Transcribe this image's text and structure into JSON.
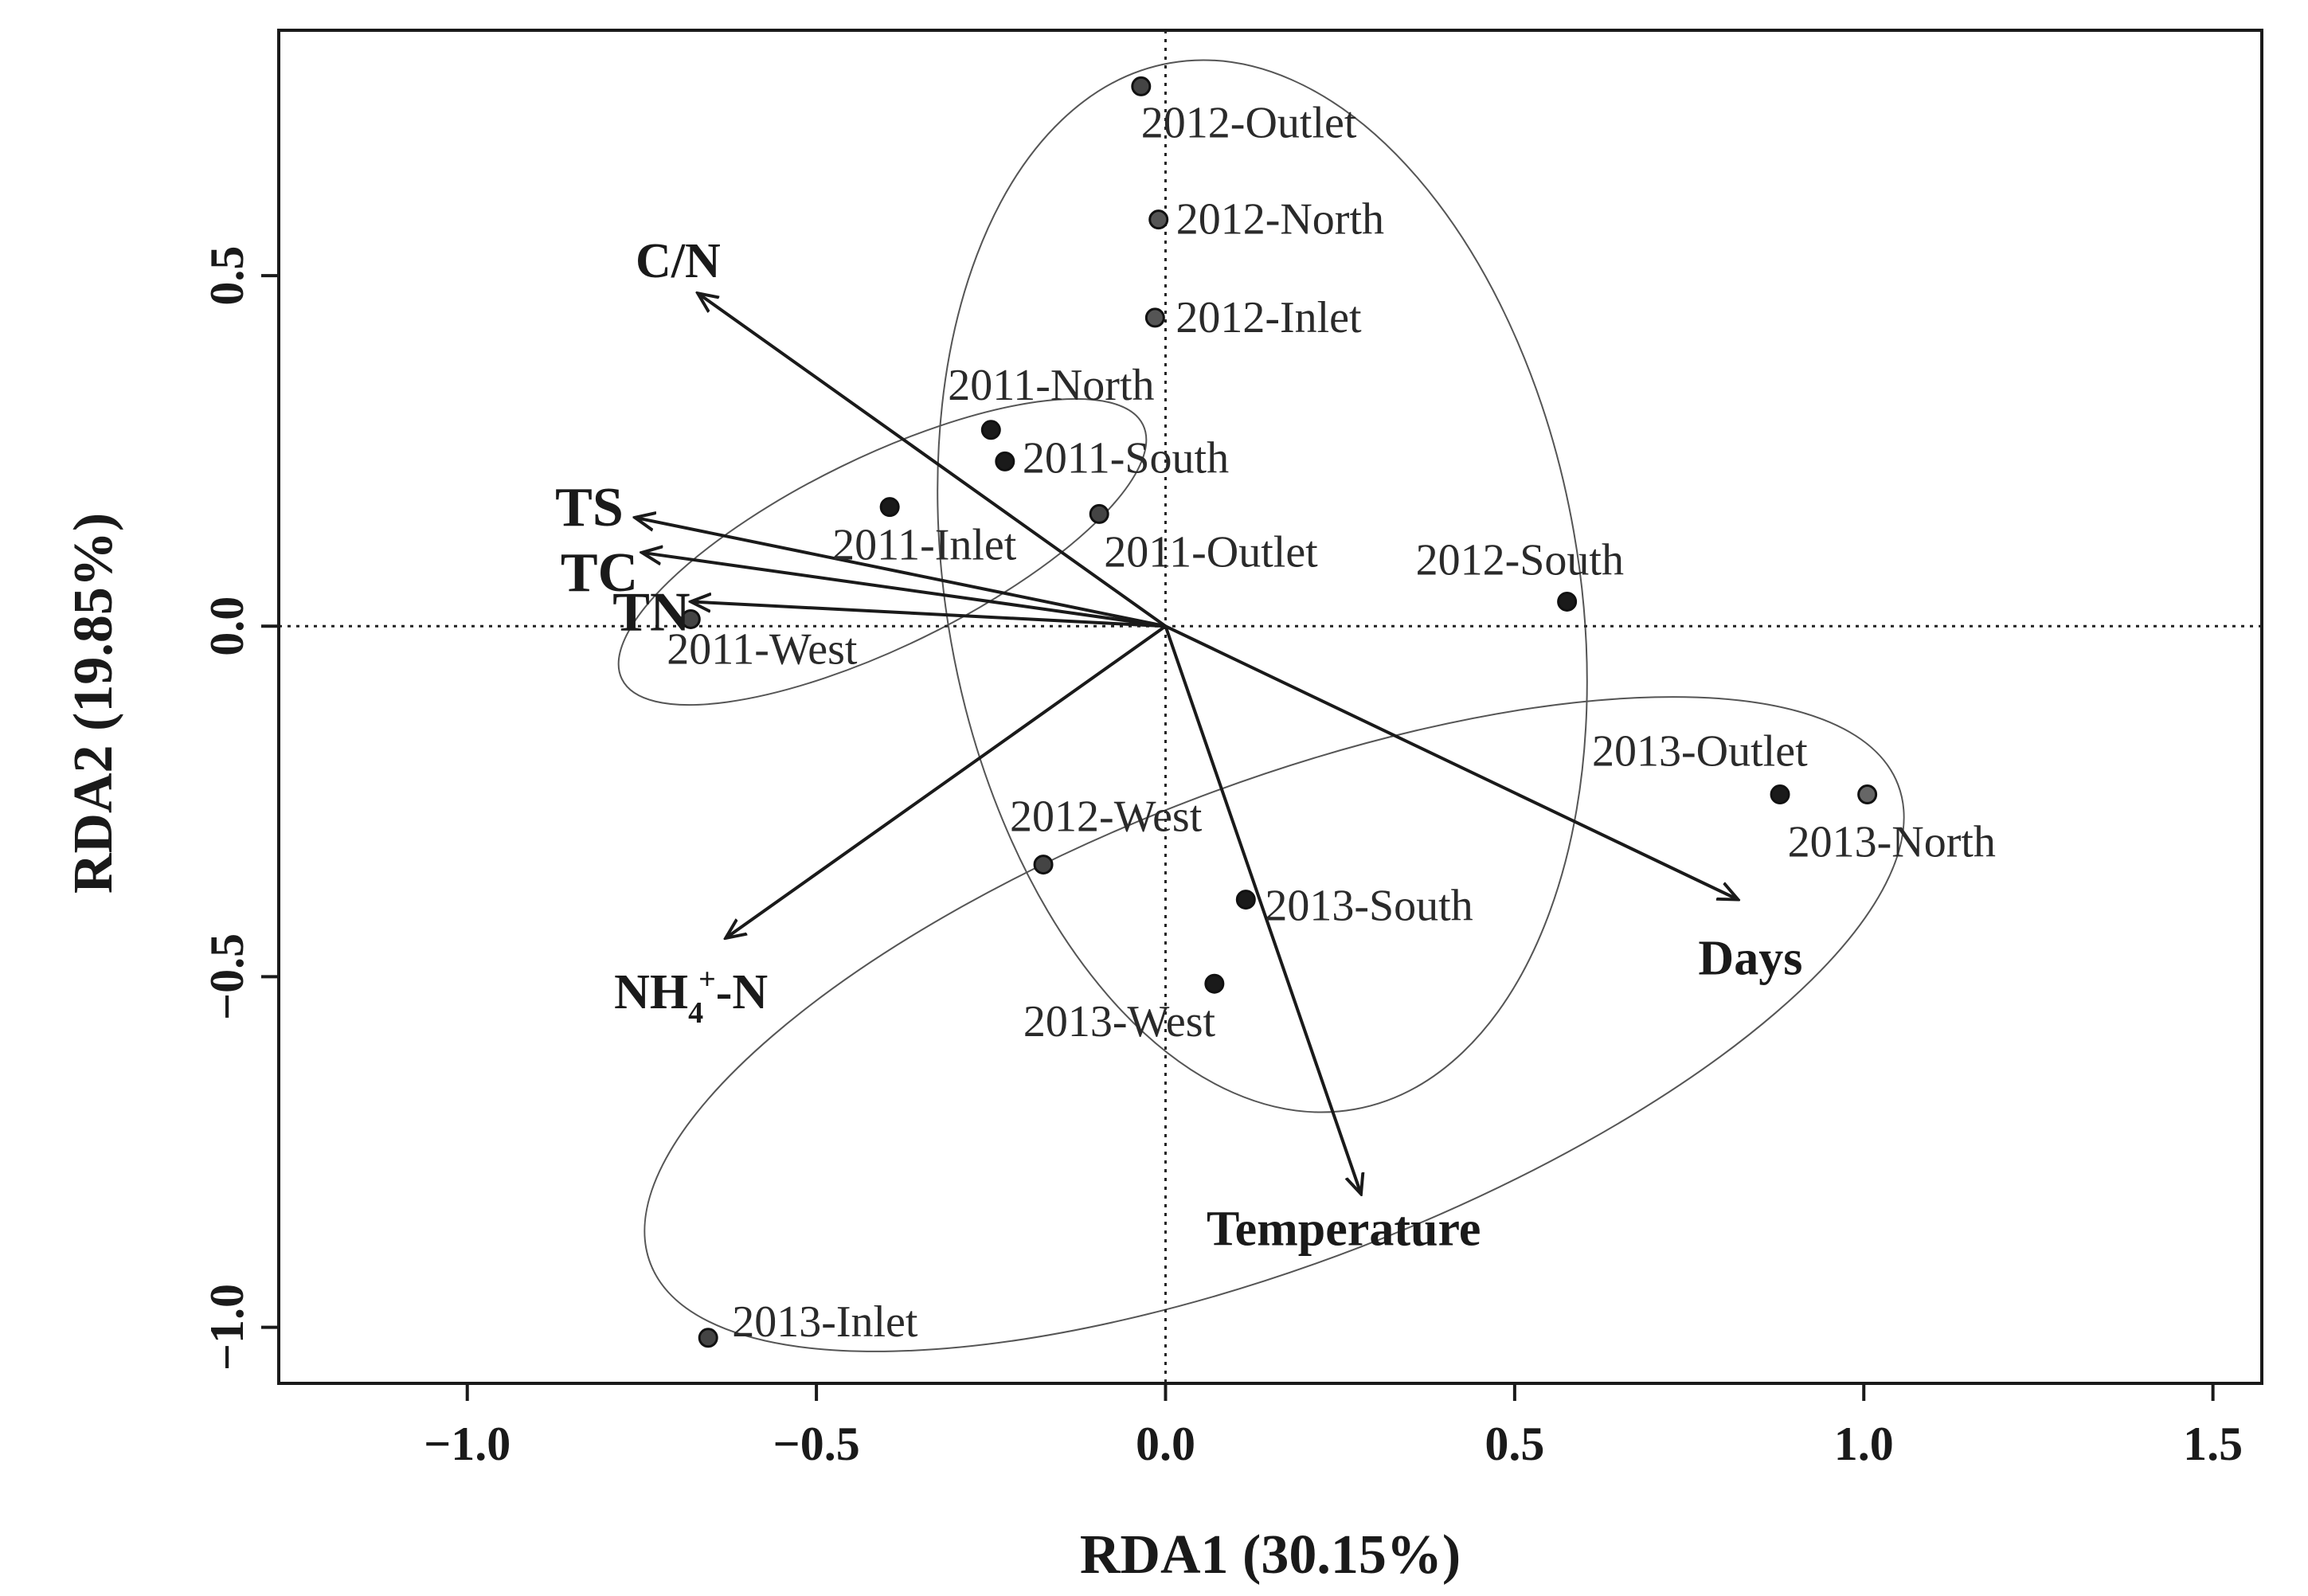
{
  "chart_data": {
    "type": "scatter",
    "subtype": "rda-biplot",
    "xlabel": "RDA1 (30.15%)",
    "ylabel": "RDA2 (19.85%)",
    "xlim": [
      -1.27,
      1.57
    ],
    "ylim": [
      -1.08,
      0.85
    ],
    "xticks": [
      -1.0,
      -0.5,
      0.0,
      0.5,
      1.0,
      1.5
    ],
    "xtick_labels": [
      "−1.0",
      "−0.5",
      "0.0",
      "0.5",
      "1.0",
      "1.5"
    ],
    "yticks": [
      -1.0,
      -0.5,
      0.0,
      0.5
    ],
    "ytick_labels": [
      "−1.0",
      "−0.5",
      "0.0",
      "0.5"
    ],
    "zero_lines": true,
    "grid": false,
    "points": [
      {
        "label": "2011-North",
        "x": -0.25,
        "y": 0.28,
        "color": "#1a1a1a"
      },
      {
        "label": "2011-South",
        "x": -0.23,
        "y": 0.235,
        "color": "#1a1a1a"
      },
      {
        "label": "2011-Inlet",
        "x": -0.395,
        "y": 0.17,
        "color": "#1a1a1a"
      },
      {
        "label": "2011-Outlet",
        "x": -0.095,
        "y": 0.16,
        "color": "#444444"
      },
      {
        "label": "2011-West",
        "x": -0.68,
        "y": 0.01,
        "color": "#444444"
      },
      {
        "label": "2012-Outlet",
        "x": -0.035,
        "y": 0.77,
        "color": "#444444"
      },
      {
        "label": "2012-North",
        "x": -0.01,
        "y": 0.58,
        "color": "#555555"
      },
      {
        "label": "2012-Inlet",
        "x": -0.015,
        "y": 0.44,
        "color": "#555555"
      },
      {
        "label": "2012-South",
        "x": 0.575,
        "y": 0.035,
        "color": "#1a1a1a"
      },
      {
        "label": "2012-West",
        "x": -0.175,
        "y": -0.34,
        "color": "#444444"
      },
      {
        "label": "2013-Outlet",
        "x": 0.88,
        "y": -0.24,
        "color": "#1a1a1a"
      },
      {
        "label": "2013-North",
        "x": 1.005,
        "y": -0.24,
        "color": "#666666"
      },
      {
        "label": "2013-South",
        "x": 0.115,
        "y": -0.39,
        "color": "#1a1a1a"
      },
      {
        "label": "2013-West",
        "x": 0.07,
        "y": -0.51,
        "color": "#1a1a1a"
      },
      {
        "label": "2013-Inlet",
        "x": -0.655,
        "y": -1.015,
        "color": "#444444"
      }
    ],
    "vectors": [
      {
        "name": "C/N",
        "x": -0.67,
        "y": 0.475
      },
      {
        "name": "TS",
        "x": -0.76,
        "y": 0.155
      },
      {
        "name": "TC",
        "x": -0.75,
        "y": 0.105
      },
      {
        "name": "TN",
        "x": -0.68,
        "y": 0.035
      },
      {
        "name": "NH4+-N",
        "x": -0.63,
        "y": -0.445
      },
      {
        "name": "Temperature",
        "x": 0.28,
        "y": -0.81
      },
      {
        "name": "Days",
        "x": 0.82,
        "y": -0.39
      }
    ],
    "vector_labels": {
      "C/N": "C/N",
      "TS": "TS",
      "TC": "TC",
      "TN": "TN",
      "NH4+-N": {
        "main": "NH",
        "sub": "4",
        "sup": "+",
        "tail": "-N"
      },
      "Temperature": "Temperature",
      "Days": "Days"
    },
    "groups": [
      {
        "year": "2011",
        "members": [
          "2011-North",
          "2011-South",
          "2011-Inlet",
          "2011-Outlet",
          "2011-West"
        ]
      },
      {
        "year": "2012",
        "members": [
          "2012-Outlet",
          "2012-North",
          "2012-Inlet",
          "2012-South",
          "2012-West"
        ]
      },
      {
        "year": "2013",
        "members": [
          "2013-Outlet",
          "2013-North",
          "2013-South",
          "2013-West",
          "2013-Inlet"
        ]
      }
    ]
  }
}
